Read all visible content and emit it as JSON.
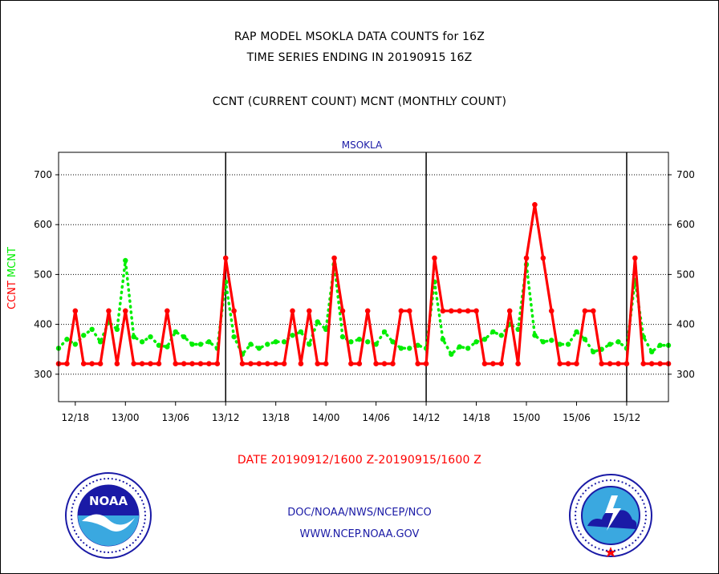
{
  "header": {
    "title_line1": "RAP MODEL MSOKLA DATA COUNTS for 16Z",
    "title_line2": "TIME SERIES ENDING IN 20190915 16Z",
    "legend_line": "CCNT (CURRENT COUNT) MCNT (MONTHLY COUNT)",
    "station": "MSOKLA"
  },
  "y_axis_labels": {
    "ccnt": "CCNT",
    "mcnt": "MCNT"
  },
  "date_range": "DATE 20190912/1600 Z-20190915/1600 Z",
  "footer": {
    "org": "DOC/NOAA/NWS/NCEP/NCO",
    "url": "WWW.NCEP.NOAA.GOV"
  },
  "logos": {
    "noaa": {
      "text": "NOAA",
      "ring_text": "NATIONAL OCEANIC AND ATMOSPHERIC ADMINISTRATION · U.S. DEPARTMENT OF COMMERCE"
    },
    "nws": {
      "ring_text": "NATIONAL WEATHER SERVICE"
    }
  },
  "colors": {
    "ccnt": "#ff0000",
    "mcnt": "#00ee00",
    "title_blue": "#1a1aa6",
    "grid": "#000000"
  },
  "chart_data": {
    "type": "line",
    "title": "MSOKLA",
    "ylim": [
      245,
      745
    ],
    "yticks": [
      300,
      400,
      500,
      600,
      700
    ],
    "x_start_hour": 16,
    "x_tick_labels": [
      "12/18",
      "13/00",
      "13/06",
      "13/12",
      "13/18",
      "14/00",
      "14/06",
      "14/12",
      "14/18",
      "15/00",
      "15/06",
      "15/12"
    ],
    "x_tick_hours": [
      18,
      24,
      30,
      36,
      42,
      48,
      54,
      60,
      66,
      72,
      78,
      84
    ],
    "day_boundaries_hours": [
      36,
      60,
      84
    ],
    "grid": "horizontal dotted",
    "series": [
      {
        "name": "CCNT",
        "style": "solid",
        "values": [
          321,
          321,
          427,
          321,
          321,
          321,
          427,
          321,
          427,
          321,
          321,
          321,
          321,
          427,
          321,
          321,
          321,
          321,
          321,
          321,
          533,
          427,
          321,
          321,
          321,
          321,
          321,
          321,
          427,
          321,
          427,
          321,
          321,
          533,
          427,
          321,
          321,
          427,
          321,
          321,
          321,
          427,
          427,
          321,
          321,
          533,
          427,
          427,
          427,
          427,
          427,
          321,
          321,
          321,
          427,
          321,
          533,
          640,
          533,
          427,
          321,
          321,
          321,
          427,
          427,
          321,
          321,
          321,
          321,
          533,
          321,
          321,
          321,
          321
        ]
      },
      {
        "name": "MCNT",
        "style": "dotted",
        "values": [
          352,
          370,
          360,
          378,
          390,
          365,
          405,
          390,
          528,
          375,
          365,
          375,
          358,
          355,
          385,
          375,
          360,
          360,
          365,
          352,
          485,
          375,
          340,
          360,
          352,
          360,
          365,
          365,
          378,
          385,
          360,
          405,
          390,
          520,
          375,
          365,
          370,
          365,
          360,
          385,
          365,
          352,
          352,
          358,
          352,
          485,
          370,
          340,
          355,
          352,
          365,
          370,
          385,
          378,
          400,
          390,
          520,
          378,
          365,
          368,
          360,
          360,
          385,
          370,
          345,
          350,
          360,
          365,
          352,
          488,
          375,
          345,
          358,
          358
        ]
      }
    ]
  }
}
